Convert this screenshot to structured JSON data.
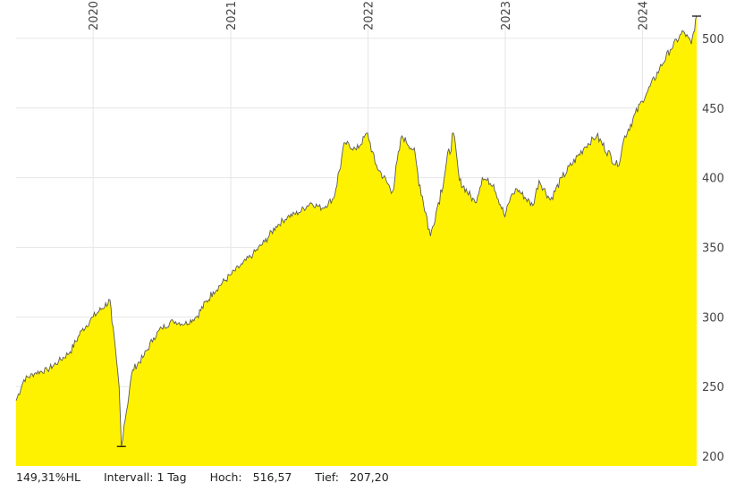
{
  "chart_data": {
    "type": "area",
    "y_ticks": [
      200,
      250,
      300,
      350,
      400,
      450,
      500
    ],
    "x_year_labels": [
      "2020",
      "2021",
      "2022",
      "2023",
      "2024"
    ],
    "ylim": [
      193,
      525
    ],
    "xlim": [
      "2019-06-10",
      "2024-05-24"
    ],
    "series": [
      {
        "x": [
          "2019-06-10",
          "2019-07-01",
          "2019-08-01",
          "2019-09-01",
          "2019-10-01",
          "2019-11-01",
          "2019-12-01",
          "2020-01-01",
          "2020-02-15",
          "2020-02-20",
          "2020-03-10",
          "2020-03-16",
          "2020-03-23",
          "2020-04-15",
          "2020-05-15",
          "2020-06-10",
          "2020-07-01",
          "2020-08-01",
          "2020-09-01",
          "2020-10-01",
          "2020-11-15",
          "2020-12-31",
          "2021-02-01",
          "2021-03-01",
          "2021-04-01",
          "2021-05-01",
          "2021-06-01",
          "2021-07-01",
          "2021-08-01",
          "2021-09-01",
          "2021-10-01",
          "2021-11-01",
          "2021-12-01",
          "2021-12-31",
          "2022-01-20",
          "2022-03-07",
          "2022-04-01",
          "2022-05-01",
          "2022-06-16",
          "2022-07-01",
          "2022-08-16",
          "2022-09-01",
          "2022-10-13",
          "2022-11-01",
          "2022-12-01",
          "2022-12-31",
          "2023-01-15",
          "2023-02-01",
          "2023-03-15",
          "2023-04-01",
          "2023-05-01",
          "2023-06-01",
          "2023-07-31",
          "2023-09-01",
          "2023-10-27",
          "2023-11-15",
          "2023-12-31",
          "2024-01-15",
          "2024-02-15",
          "2024-03-15",
          "2024-04-19",
          "2024-05-10",
          "2024-05-24"
        ],
        "values": [
          240,
          255,
          260,
          262,
          268,
          275,
          290,
          300,
          312,
          296,
          250,
          207,
          222,
          262,
          272,
          285,
          292,
          297,
          295,
          300,
          318,
          330,
          338,
          345,
          354,
          365,
          372,
          375,
          382,
          378,
          385,
          425,
          420,
          432,
          410,
          390,
          430,
          420,
          358,
          375,
          432,
          398,
          382,
          400,
          395,
          372,
          386,
          392,
          380,
          398,
          384,
          400,
          422,
          430,
          408,
          430,
          455,
          462,
          478,
          492,
          505,
          496,
          516
        ]
      }
    ],
    "stats": {
      "hl": "149,31%HL",
      "interval_label": "Intervall: 1 Tag",
      "high_label": "Hoch:",
      "high_value": "516,57",
      "low_label": "Tief:",
      "low_value": "207,20"
    },
    "colors": {
      "fill": "#fff200",
      "line": "#5a5a5a",
      "grid": "#e6e6e6"
    }
  }
}
